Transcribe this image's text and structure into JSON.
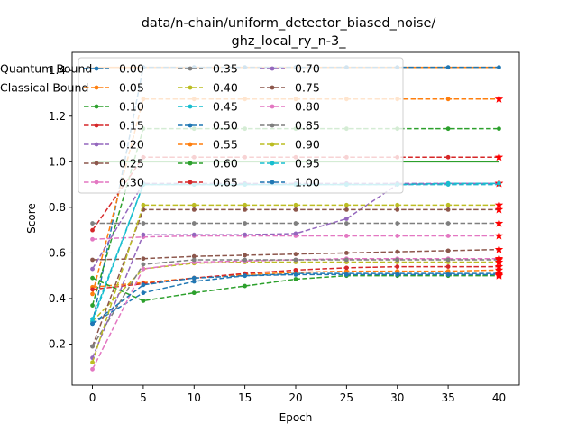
{
  "chart_data": {
    "type": "line",
    "title_line1": "data/n-chain/uniform_detector_biased_noise/",
    "title_line2": "ghz_local_ry_n-3_",
    "xlabel": "Epoch",
    "ylabel": "Score",
    "xlim": [
      -2,
      42
    ],
    "ylim": [
      0.02,
      1.48
    ],
    "xticks": [
      "0",
      "5",
      "10",
      "15",
      "20",
      "25",
      "30",
      "35",
      "40"
    ],
    "yticks": [
      "0.2",
      "0.4",
      "0.6",
      "0.8",
      "1.0",
      "1.2",
      "1.4"
    ],
    "x": [
      0,
      5,
      10,
      15,
      20,
      25,
      30,
      35,
      40
    ],
    "grid": false,
    "legend_position": "upper-left",
    "bounds": [
      {
        "name": "Quantum Bound",
        "value": 1.414,
        "color": "#ff7f0e"
      },
      {
        "name": "Classical Bound",
        "value": 1.0,
        "color": "#2ca02c"
      }
    ],
    "series": [
      {
        "name": "0.00",
        "color": "#1f77b4",
        "values": [
          0.29,
          1.414,
          1.414,
          1.414,
          1.414,
          1.414,
          1.414,
          1.414,
          1.414
        ],
        "end_marker": "dot"
      },
      {
        "name": "0.05",
        "color": "#ff7f0e",
        "values": [
          0.42,
          1.275,
          1.275,
          1.275,
          1.275,
          1.275,
          1.275,
          1.275,
          1.275
        ],
        "end_marker": "star"
      },
      {
        "name": "0.10",
        "color": "#2ca02c",
        "values": [
          0.37,
          1.145,
          1.145,
          1.145,
          1.145,
          1.145,
          1.145,
          1.145,
          1.145
        ],
        "end_marker": "dot"
      },
      {
        "name": "0.15",
        "color": "#d62728",
        "values": [
          0.7,
          1.02,
          1.02,
          1.02,
          1.02,
          1.02,
          1.02,
          1.02,
          1.02
        ],
        "end_marker": "star"
      },
      {
        "name": "0.20",
        "color": "#9467bd",
        "values": [
          0.53,
          0.905,
          0.905,
          0.905,
          0.905,
          0.905,
          0.905,
          0.905,
          0.905
        ],
        "end_marker": "star"
      },
      {
        "name": "0.25",
        "color": "#8c564b",
        "values": [
          0.57,
          0.575,
          0.585,
          0.59,
          0.595,
          0.6,
          0.605,
          0.61,
          0.615
        ],
        "end_marker": "star"
      },
      {
        "name": "0.30",
        "color": "#e377c2",
        "values": [
          0.66,
          0.67,
          0.675,
          0.675,
          0.675,
          0.675,
          0.675,
          0.675,
          0.675
        ],
        "end_marker": "star"
      },
      {
        "name": "0.35",
        "color": "#7f7f7f",
        "values": [
          0.73,
          0.73,
          0.73,
          0.73,
          0.73,
          0.73,
          0.73,
          0.73,
          0.73
        ],
        "end_marker": "star"
      },
      {
        "name": "0.40",
        "color": "#bcbd22",
        "values": [
          0.3,
          0.53,
          0.555,
          0.56,
          0.56,
          0.56,
          0.56,
          0.56,
          0.56
        ],
        "end_marker": "star"
      },
      {
        "name": "0.45",
        "color": "#17becf",
        "values": [
          0.3,
          0.9,
          0.9,
          0.9,
          0.9,
          0.9,
          0.9,
          0.9,
          0.9
        ],
        "end_marker": "dot"
      },
      {
        "name": "0.50",
        "color": "#1f77b4",
        "values": [
          0.29,
          0.425,
          0.475,
          0.5,
          0.51,
          0.51,
          0.51,
          0.51,
          0.51
        ],
        "end_marker": "star"
      },
      {
        "name": "0.55",
        "color": "#ff7f0e",
        "values": [
          0.45,
          0.47,
          0.49,
          0.505,
          0.515,
          0.52,
          0.52,
          0.52,
          0.525
        ],
        "end_marker": "star"
      },
      {
        "name": "0.60",
        "color": "#2ca02c",
        "values": [
          0.49,
          0.39,
          0.425,
          0.455,
          0.485,
          0.5,
          0.5,
          0.5,
          0.5
        ],
        "end_marker": "star"
      },
      {
        "name": "0.65",
        "color": "#d62728",
        "values": [
          0.44,
          0.465,
          0.49,
          0.51,
          0.525,
          0.535,
          0.54,
          0.54,
          0.54
        ],
        "end_marker": "star"
      },
      {
        "name": "0.70",
        "color": "#9467bd",
        "values": [
          0.14,
          0.68,
          0.68,
          0.68,
          0.685,
          0.75,
          0.9,
          0.905,
          0.905
        ],
        "end_marker": "star"
      },
      {
        "name": "0.75",
        "color": "#8c564b",
        "values": [
          0.19,
          0.79,
          0.79,
          0.79,
          0.79,
          0.79,
          0.79,
          0.79,
          0.79
        ],
        "end_marker": "star"
      },
      {
        "name": "0.80",
        "color": "#e377c2",
        "values": [
          0.09,
          0.53,
          0.56,
          0.565,
          0.57,
          0.575,
          0.575,
          0.575,
          0.575
        ],
        "end_marker": "star"
      },
      {
        "name": "0.85",
        "color": "#7f7f7f",
        "values": [
          0.19,
          0.55,
          0.57,
          0.57,
          0.57,
          0.57,
          0.57,
          0.57,
          0.57
        ],
        "end_marker": "star"
      },
      {
        "name": "0.90",
        "color": "#bcbd22",
        "values": [
          0.12,
          0.81,
          0.81,
          0.81,
          0.81,
          0.81,
          0.81,
          0.81,
          0.81
        ],
        "end_marker": "star"
      },
      {
        "name": "0.95",
        "color": "#17becf",
        "values": [
          0.31,
          0.9,
          0.9,
          0.9,
          0.9,
          0.9,
          0.9,
          0.905,
          0.905
        ],
        "end_marker": "dot"
      },
      {
        "name": "1.00",
        "color": "#1f77b4",
        "values": [
          0.29,
          0.46,
          0.49,
          0.5,
          0.505,
          0.505,
          0.505,
          0.505,
          0.505
        ],
        "end_marker": "star"
      }
    ]
  }
}
